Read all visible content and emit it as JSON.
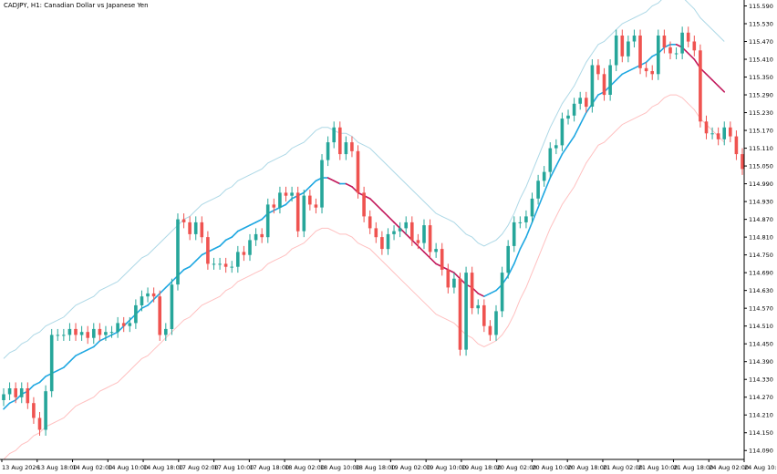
{
  "chart_data": {
    "type": "candlestick",
    "title": "CADJPY, H1:  Canadian Dollar vs Japanese Yen",
    "y_ticks": [
      "115.590",
      "115.530",
      "115.470",
      "115.410",
      "115.350",
      "115.290",
      "115.230",
      "115.170",
      "115.110",
      "115.050",
      "114.990",
      "114.930",
      "114.870",
      "114.810",
      "114.750",
      "114.690",
      "114.630",
      "114.570",
      "114.510",
      "114.450",
      "114.390",
      "114.330",
      "114.270",
      "114.210",
      "114.150",
      "114.090"
    ],
    "x_ticks": [
      "13 Aug 2026",
      "13 Aug 18:00",
      "14 Aug 02:00",
      "14 Aug 10:00",
      "14 Aug 18:00",
      "17 Aug 02:00",
      "17 Aug 10:00",
      "17 Aug 18:00",
      "18 Aug 02:00",
      "18 Aug 10:00",
      "18 Aug 18:00",
      "19 Aug 02:00",
      "19 Aug 10:00",
      "19 Aug 18:00",
      "20 Aug 02:00",
      "20 Aug 10:00",
      "20 Aug 18:00",
      "21 Aug 02:00",
      "21 Aug 10:00",
      "21 Aug 18:00",
      "24 Aug 02:00",
      "24 Aug 10:00"
    ],
    "ylim": [
      114.06,
      115.61
    ],
    "grid": false,
    "colors": {
      "up": "#26a69a",
      "down": "#ef5350",
      "ma_up": "#1ea7e1",
      "ma_down": "#c2185b",
      "band_upper": "#add8e6",
      "band_lower": "#ffc0c0"
    },
    "series": {
      "open": [
        114.26,
        114.28,
        114.3,
        114.27,
        114.3,
        114.25,
        114.2,
        114.16,
        114.29,
        114.48,
        114.48,
        114.48,
        114.5,
        114.48,
        114.49,
        114.47,
        114.5,
        114.48,
        114.49,
        114.49,
        114.52,
        114.51,
        114.52,
        114.58,
        114.61,
        114.62,
        114.61,
        114.48,
        114.5,
        114.65,
        114.87,
        114.86,
        114.82,
        114.86,
        114.81,
        114.72,
        114.72,
        114.72,
        114.71,
        114.71,
        114.76,
        114.75,
        114.8,
        114.82,
        114.81,
        114.92,
        114.91,
        114.96,
        114.95,
        114.96,
        114.83,
        114.95,
        114.92,
        114.91,
        115.07,
        115.13,
        115.18,
        115.09,
        115.13,
        115.1,
        114.96,
        114.88,
        114.84,
        114.81,
        114.77,
        114.82,
        114.83,
        114.84,
        114.86,
        114.8,
        114.79,
        114.85,
        114.76,
        114.77,
        114.7,
        114.64,
        114.67,
        114.43,
        114.69,
        114.57,
        114.58,
        114.51,
        114.48,
        114.56,
        114.69,
        114.78,
        114.86,
        114.86,
        114.88,
        114.94,
        115.0,
        115.03,
        115.11,
        115.12,
        115.21,
        115.22,
        115.26,
        115.28,
        115.25,
        115.39,
        115.36,
        115.29,
        115.39,
        115.49,
        115.42,
        115.47,
        115.49,
        115.38,
        115.37,
        115.36,
        115.49,
        115.45,
        115.43,
        115.43,
        115.5,
        115.47,
        115.44,
        115.2,
        115.16,
        115.16,
        115.14,
        115.18,
        115.15,
        115.09
      ],
      "close": [
        114.28,
        114.3,
        114.27,
        114.3,
        114.25,
        114.2,
        114.16,
        114.29,
        114.48,
        114.48,
        114.48,
        114.5,
        114.48,
        114.49,
        114.47,
        114.5,
        114.48,
        114.49,
        114.49,
        114.52,
        114.51,
        114.52,
        114.58,
        114.61,
        114.62,
        114.61,
        114.48,
        114.5,
        114.65,
        114.87,
        114.86,
        114.82,
        114.86,
        114.81,
        114.72,
        114.72,
        114.72,
        114.71,
        114.71,
        114.76,
        114.75,
        114.8,
        114.82,
        114.81,
        114.92,
        114.91,
        114.96,
        114.95,
        114.96,
        114.83,
        114.95,
        114.92,
        114.91,
        115.07,
        115.13,
        115.18,
        115.09,
        115.13,
        115.1,
        114.96,
        114.88,
        114.84,
        114.81,
        114.77,
        114.82,
        114.83,
        114.84,
        114.86,
        114.8,
        114.79,
        114.85,
        114.76,
        114.77,
        114.7,
        114.64,
        114.67,
        114.43,
        114.69,
        114.57,
        114.58,
        114.51,
        114.48,
        114.56,
        114.69,
        114.78,
        114.86,
        114.86,
        114.88,
        114.94,
        115.0,
        115.03,
        115.11,
        115.12,
        115.21,
        115.22,
        115.26,
        115.28,
        115.25,
        115.39,
        115.36,
        115.29,
        115.39,
        115.49,
        115.42,
        115.47,
        115.49,
        115.38,
        115.37,
        115.36,
        115.49,
        115.45,
        115.43,
        115.43,
        115.5,
        115.47,
        115.44,
        115.2,
        115.16,
        115.16,
        115.14,
        115.18,
        115.15,
        115.09,
        115.04
      ]
    },
    "ma_line": [
      114.23,
      114.25,
      114.26,
      114.28,
      114.29,
      114.31,
      114.32,
      114.34,
      114.35,
      114.36,
      114.37,
      114.39,
      114.41,
      114.42,
      114.43,
      114.44,
      114.46,
      114.47,
      114.48,
      114.49,
      114.51,
      114.53,
      114.55,
      114.57,
      114.58,
      114.6,
      114.62,
      114.64,
      114.66,
      114.68,
      114.7,
      114.71,
      114.73,
      114.75,
      114.76,
      114.77,
      114.78,
      114.8,
      114.81,
      114.83,
      114.84,
      114.85,
      114.86,
      114.87,
      114.89,
      114.9,
      114.91,
      114.92,
      114.94,
      114.95,
      114.96,
      114.98,
      115.0,
      115.01,
      115.01,
      115.0,
      114.99,
      114.99,
      114.98,
      114.96,
      114.95,
      114.94,
      114.92,
      114.9,
      114.88,
      114.86,
      114.84,
      114.82,
      114.8,
      114.78,
      114.76,
      114.74,
      114.72,
      114.71,
      114.7,
      114.69,
      114.67,
      114.65,
      114.64,
      114.62,
      114.61,
      114.62,
      114.63,
      114.65,
      114.68,
      114.72,
      114.77,
      114.81,
      114.86,
      114.91,
      114.96,
      115.01,
      115.05,
      115.09,
      115.12,
      115.15,
      115.19,
      115.23,
      115.26,
      115.29,
      115.3,
      115.32,
      115.34,
      115.36,
      115.37,
      115.38,
      115.39,
      115.4,
      115.42,
      115.43,
      115.45,
      115.46,
      115.46,
      115.45,
      115.43,
      115.41,
      115.38,
      115.36,
      115.34,
      115.32,
      115.3
    ]
  }
}
